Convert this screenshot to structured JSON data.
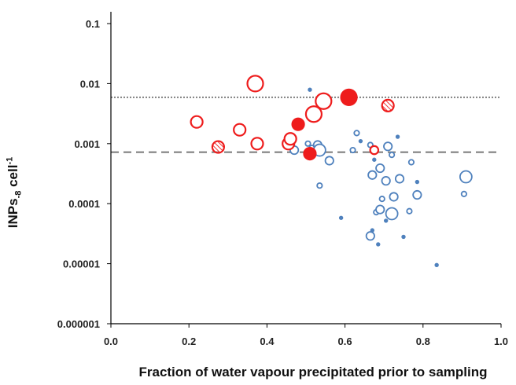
{
  "chart_data": {
    "type": "scatter",
    "title": "",
    "xlabel": "Fraction of water vapour precipitated prior to sampling",
    "ylabel": {
      "base": "INPs",
      "subscript": "-8",
      "unit": " cell",
      "superscript": "-1"
    },
    "x_range": [
      0.0,
      1.0
    ],
    "y_range": [
      1e-06,
      0.1
    ],
    "y_scale": "log",
    "x_ticks": [
      "0.0",
      "0.2",
      "0.4",
      "0.6",
      "0.8",
      "1.0"
    ],
    "y_ticks": [
      "0.000001",
      "0.00001",
      "0.0001",
      "0.001",
      "0.01",
      "0.1"
    ],
    "reference_lines": [
      {
        "y": 0.0059,
        "style": "dotted",
        "color": "#808080"
      },
      {
        "y": 0.00072,
        "style": "dashed",
        "color": "#808080"
      }
    ],
    "series": [
      {
        "style": "open",
        "color": "#4f81bd",
        "points": [
          {
            "x": 0.51,
            "y": 0.0079,
            "size": 1
          },
          {
            "x": 0.505,
            "y": 0.001,
            "size": 2
          },
          {
            "x": 0.47,
            "y": 0.00078,
            "size": 3
          },
          {
            "x": 0.515,
            "y": 0.00085,
            "size": 2
          },
          {
            "x": 0.53,
            "y": 0.00095,
            "size": 3
          },
          {
            "x": 0.535,
            "y": 0.00078,
            "size": 4
          },
          {
            "x": 0.56,
            "y": 0.00052,
            "size": 3
          },
          {
            "x": 0.535,
            "y": 0.0002,
            "size": 2
          },
          {
            "x": 0.59,
            "y": 5.8e-05,
            "size": 1
          },
          {
            "x": 0.62,
            "y": 0.00078,
            "size": 2
          },
          {
            "x": 0.63,
            "y": 0.0015,
            "size": 2
          },
          {
            "x": 0.64,
            "y": 0.0011,
            "size": 1
          },
          {
            "x": 0.665,
            "y": 0.00095,
            "size": 2
          },
          {
            "x": 0.67,
            "y": 0.0003,
            "size": 3
          },
          {
            "x": 0.67,
            "y": 3.6e-05,
            "size": 1
          },
          {
            "x": 0.665,
            "y": 2.9e-05,
            "size": 3
          },
          {
            "x": 0.675,
            "y": 0.00054,
            "size": 1
          },
          {
            "x": 0.68,
            "y": 7.2e-05,
            "size": 2
          },
          {
            "x": 0.685,
            "y": 2.1e-05,
            "size": 1
          },
          {
            "x": 0.69,
            "y": 0.00039,
            "size": 3
          },
          {
            "x": 0.69,
            "y": 8e-05,
            "size": 3
          },
          {
            "x": 0.695,
            "y": 0.00012,
            "size": 2
          },
          {
            "x": 0.705,
            "y": 0.00024,
            "size": 3
          },
          {
            "x": 0.705,
            "y": 5.2e-05,
            "size": 1
          },
          {
            "x": 0.71,
            "y": 0.0009,
            "size": 3
          },
          {
            "x": 0.72,
            "y": 0.00065,
            "size": 2
          },
          {
            "x": 0.72,
            "y": 6.8e-05,
            "size": 4
          },
          {
            "x": 0.725,
            "y": 0.00013,
            "size": 3
          },
          {
            "x": 0.735,
            "y": 0.0013,
            "size": 1
          },
          {
            "x": 0.74,
            "y": 0.00026,
            "size": 3
          },
          {
            "x": 0.75,
            "y": 2.8e-05,
            "size": 1
          },
          {
            "x": 0.765,
            "y": 7.5e-05,
            "size": 2
          },
          {
            "x": 0.77,
            "y": 0.00049,
            "size": 2
          },
          {
            "x": 0.785,
            "y": 0.00014,
            "size": 3
          },
          {
            "x": 0.785,
            "y": 0.00023,
            "size": 1
          },
          {
            "x": 0.835,
            "y": 9.5e-06,
            "size": 1
          },
          {
            "x": 0.905,
            "y": 0.000145,
            "size": 2
          },
          {
            "x": 0.91,
            "y": 0.00028,
            "size": 4
          }
        ]
      },
      {
        "style": "open",
        "color": "#ee1c1c",
        "points": [
          {
            "x": 0.22,
            "y": 0.0023,
            "size": 4
          },
          {
            "x": 0.33,
            "y": 0.0017,
            "size": 4
          },
          {
            "x": 0.37,
            "y": 0.01,
            "size": 5
          },
          {
            "x": 0.375,
            "y": 0.001,
            "size": 4
          },
          {
            "x": 0.455,
            "y": 0.001,
            "size": 4
          },
          {
            "x": 0.46,
            "y": 0.0012,
            "size": 4
          },
          {
            "x": 0.52,
            "y": 0.0031,
            "size": 5
          },
          {
            "x": 0.545,
            "y": 0.0051,
            "size": 5
          },
          {
            "x": 0.675,
            "y": 0.00078,
            "size": 3
          }
        ]
      },
      {
        "style": "filled",
        "color": "#ee1c1c",
        "points": [
          {
            "x": 0.48,
            "y": 0.0021,
            "size": 4
          },
          {
            "x": 0.51,
            "y": 0.00068,
            "size": 4
          },
          {
            "x": 0.61,
            "y": 0.0059,
            "size": 5
          }
        ]
      },
      {
        "style": "hatched",
        "color": "#ee1c1c",
        "points": [
          {
            "x": 0.275,
            "y": 0.00088,
            "size": 4
          },
          {
            "x": 0.71,
            "y": 0.0043,
            "size": 4
          }
        ]
      }
    ],
    "grid": false,
    "legend": "none"
  }
}
